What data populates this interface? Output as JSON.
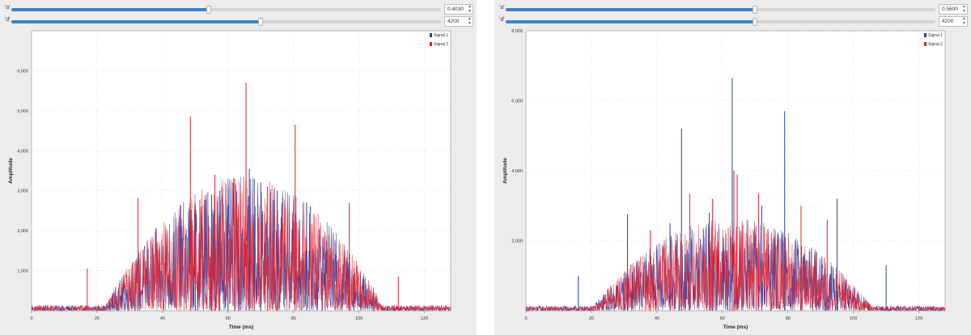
{
  "panels": [
    {
      "controls": [
        {
          "label": "'a'",
          "value": "0.4030",
          "fraction": 0.46
        },
        {
          "label": "'d'",
          "value": "4200",
          "fraction": 0.58
        }
      ]
    },
    {
      "controls": [
        {
          "label": "'a'",
          "value": "0.5600",
          "fraction": 0.58
        },
        {
          "label": "'d'",
          "value": "4200",
          "fraction": 0.58
        }
      ]
    }
  ],
  "chart_data": [
    {
      "type": "line",
      "xlabel": "Time (ms)",
      "ylabel": "Amplitude",
      "xlim": [
        0,
        128
      ],
      "ylim": [
        0,
        7000
      ],
      "xticks": [
        "0",
        "20",
        "40",
        "60",
        "80",
        "100",
        "120"
      ],
      "xtick_values": [
        0,
        20,
        40,
        60,
        80,
        100,
        120
      ],
      "yticks": [
        "1,000",
        "2,000",
        "3,000",
        "4,000",
        "5,000",
        "6,000"
      ],
      "ytick_values": [
        1000,
        2000,
        3000,
        4000,
        5000,
        6000
      ],
      "grid": true,
      "legend_position": "top-right",
      "series": [
        {
          "name": "Signal 1",
          "color": "#2b3f9e",
          "envelope_peak": 2800,
          "center_ms": 65,
          "width_ms": 85,
          "spikes": [
            [
              66.5,
              3550
            ],
            [
              68,
              3300
            ],
            [
              70,
              3200
            ],
            [
              57.5,
              3000
            ],
            [
              75,
              3000
            ],
            [
              55,
              2900
            ],
            [
              84,
              2700
            ],
            [
              50,
              2650
            ],
            [
              60,
              2650
            ]
          ]
        },
        {
          "name": "Signal 2",
          "color": "#e81d2a",
          "envelope_peak": 2800,
          "center_ms": 65,
          "width_ms": 85,
          "spikes": [
            [
              65.5,
              5700
            ],
            [
              48.5,
              4850
            ],
            [
              80.5,
              4650
            ],
            [
              32.5,
              2820
            ],
            [
              97,
              2700
            ],
            [
              56,
              3400
            ],
            [
              62,
              3300
            ],
            [
              72,
              3100
            ],
            [
              17,
              1050
            ],
            [
              112,
              850
            ]
          ]
        }
      ]
    },
    {
      "type": "line",
      "xlabel": "Time (ms)",
      "ylabel": "Amplitude",
      "xlim": [
        0,
        128
      ],
      "ylim": [
        0,
        8000
      ],
      "xticks": [
        "0",
        "20",
        "40",
        "60",
        "80",
        "100",
        "120"
      ],
      "xtick_values": [
        0,
        20,
        40,
        60,
        80,
        100,
        120
      ],
      "yticks": [
        "2,000",
        "4,000",
        "6,000",
        "8,000"
      ],
      "ytick_values": [
        2000,
        4000,
        6000,
        8000
      ],
      "grid": true,
      "legend_position": "top-right",
      "series": [
        {
          "name": "Signal 1",
          "color": "#2b3f9e",
          "envelope_peak": 2200,
          "center_ms": 63,
          "width_ms": 85,
          "spikes": [
            [
              63,
              6650
            ],
            [
              47.5,
              5200
            ],
            [
              79,
              5700
            ],
            [
              95,
              3200
            ],
            [
              31,
              2750
            ],
            [
              72,
              3000
            ],
            [
              56,
              2800
            ],
            [
              110,
              1300
            ],
            [
              16,
              1000
            ],
            [
              44,
              2500
            ]
          ]
        },
        {
          "name": "Signal 2",
          "color": "#e81d2a",
          "envelope_peak": 2200,
          "center_ms": 63,
          "width_ms": 85,
          "spikes": [
            [
              63.5,
              4000
            ],
            [
              64.5,
              3900
            ],
            [
              50,
              3350
            ],
            [
              71,
              3350
            ],
            [
              84,
              3000
            ],
            [
              38,
              2300
            ],
            [
              92,
              2600
            ],
            [
              57,
              3200
            ]
          ]
        }
      ]
    }
  ]
}
